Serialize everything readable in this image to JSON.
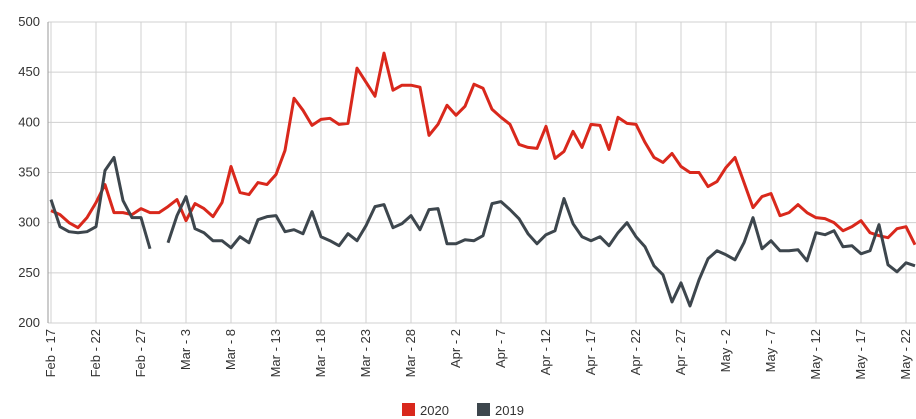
{
  "chart_data": {
    "type": "line",
    "categories": [
      "Feb - 17",
      null,
      null,
      null,
      null,
      "Feb - 22",
      null,
      null,
      null,
      null,
      "Feb - 27",
      null,
      null,
      null,
      null,
      "Mar - 3",
      null,
      null,
      null,
      null,
      "Mar - 8",
      null,
      null,
      null,
      null,
      "Mar - 13",
      null,
      null,
      null,
      null,
      "Mar - 18",
      null,
      null,
      null,
      null,
      "Mar - 23",
      null,
      null,
      null,
      null,
      "Mar - 28",
      null,
      null,
      null,
      null,
      "Apr - 2",
      null,
      null,
      null,
      null,
      "Apr - 7",
      null,
      null,
      null,
      null,
      "Apr - 12",
      null,
      null,
      null,
      null,
      "Apr - 17",
      null,
      null,
      null,
      null,
      "Apr - 22",
      null,
      null,
      null,
      null,
      "Apr - 27",
      null,
      null,
      null,
      null,
      "May - 2",
      null,
      null,
      null,
      null,
      "May - 7",
      null,
      null,
      null,
      null,
      "May - 12",
      null,
      null,
      null,
      null,
      "May - 17",
      null,
      null,
      null,
      null,
      "May - 22",
      null
    ],
    "series": [
      {
        "name": "2020",
        "color": "#d9281c",
        "values": [
          312,
          308,
          300,
          295,
          305,
          320,
          338,
          310,
          310,
          308,
          314,
          310,
          310,
          316,
          323,
          302,
          319,
          314,
          306,
          320,
          356,
          330,
          328,
          340,
          338,
          348,
          372,
          424,
          412,
          397,
          403,
          404,
          398,
          399,
          454,
          440,
          426,
          469,
          432,
          437,
          437,
          435,
          387,
          398,
          417,
          407,
          416,
          438,
          434,
          413,
          405,
          398,
          378,
          375,
          374,
          396,
          364,
          371,
          391,
          375,
          398,
          397,
          373,
          405,
          399,
          398,
          380,
          365,
          360,
          369,
          356,
          350,
          350,
          336,
          341,
          355,
          365,
          340,
          315,
          326,
          329,
          307,
          310,
          318,
          310,
          305,
          304,
          300,
          292,
          296,
          302,
          290,
          287,
          285,
          294,
          296,
          278
        ]
      },
      {
        "name": "2019",
        "color": "#3d464d",
        "values": [
          323,
          296,
          291,
          290,
          291,
          296,
          352,
          365,
          322,
          305,
          305,
          274,
          null,
          280,
          307,
          326,
          294,
          290,
          282,
          282,
          275,
          286,
          280,
          303,
          306,
          307,
          291,
          293,
          289,
          311,
          286,
          282,
          277,
          289,
          282,
          297,
          316,
          318,
          295,
          299,
          307,
          293,
          313,
          314,
          279,
          279,
          283,
          282,
          287,
          319,
          321,
          313,
          304,
          289,
          279,
          288,
          292,
          324,
          299,
          286,
          282,
          286,
          277,
          290,
          300,
          286,
          276,
          257,
          248,
          221,
          240,
          217,
          243,
          264,
          272,
          268,
          263,
          280,
          305,
          274,
          282,
          272,
          272,
          273,
          262,
          290,
          288,
          292,
          276,
          277,
          269,
          272,
          298,
          258,
          251,
          260,
          257
        ]
      }
    ],
    "ylim": [
      200,
      500
    ],
    "yticks": [
      200,
      250,
      300,
      350,
      400,
      450,
      500
    ],
    "grid": true,
    "legend": "bottom"
  }
}
